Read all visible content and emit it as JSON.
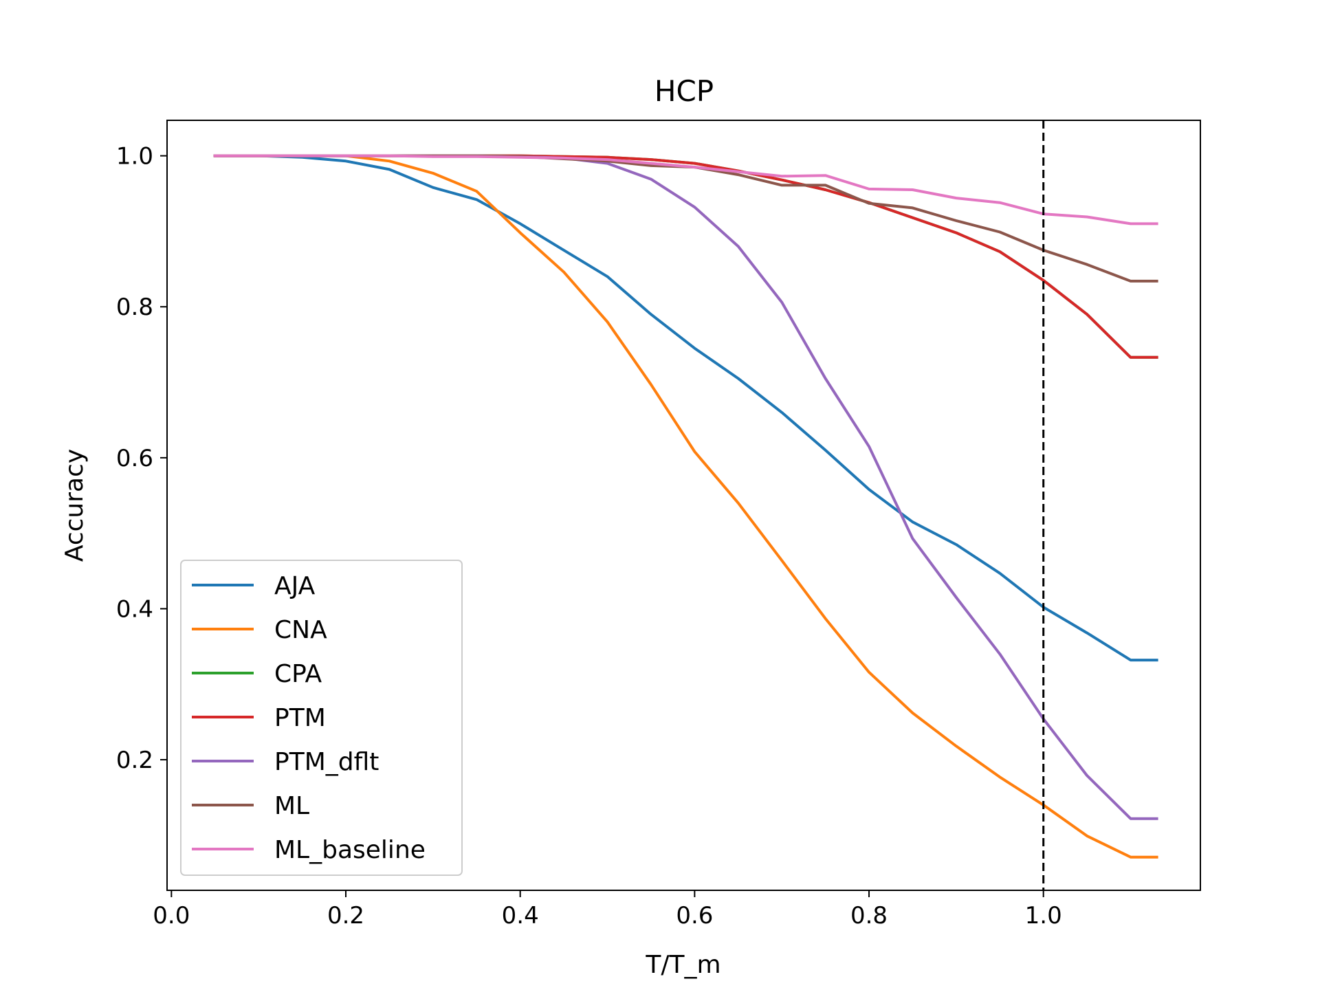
{
  "chart_data": {
    "type": "line",
    "title": "HCP",
    "xlabel": "T/T_m",
    "ylabel": "Accuracy",
    "xlim": [
      -0.005,
      1.18
    ],
    "ylim": [
      0.027,
      1.047
    ],
    "xticks": [
      0.0,
      0.2,
      0.4,
      0.6,
      0.8,
      1.0
    ],
    "xtick_labels": [
      "0.0",
      "0.2",
      "0.4",
      "0.6",
      "0.8",
      "1.0"
    ],
    "yticks": [
      0.2,
      0.4,
      0.6,
      0.8,
      1.0
    ],
    "ytick_labels": [
      "0.2",
      "0.4",
      "0.6",
      "0.8",
      "1.0"
    ],
    "vline": {
      "x": 1.0,
      "style": "dashed",
      "color": "#000000"
    },
    "grid": false,
    "legend_position": "lower-left",
    "x": [
      0.05,
      0.1,
      0.15,
      0.2,
      0.25,
      0.3,
      0.35,
      0.4,
      0.45,
      0.5,
      0.55,
      0.6,
      0.65,
      0.7,
      0.75,
      0.8,
      0.85,
      0.9,
      0.95,
      1.0,
      1.05,
      1.1,
      1.13
    ],
    "series": [
      {
        "name": "AJA",
        "color": "#1f77b4",
        "values": [
          1.0,
          1.0,
          0.998,
          0.993,
          0.982,
          0.958,
          0.942,
          0.91,
          0.875,
          0.84,
          0.79,
          0.745,
          0.705,
          0.66,
          0.61,
          0.558,
          0.515,
          0.485,
          0.447,
          0.402,
          0.368,
          0.332,
          0.332
        ]
      },
      {
        "name": "CNA",
        "color": "#ff7f0e",
        "values": [
          1.0,
          1.0,
          1.0,
          1.0,
          0.993,
          0.977,
          0.953,
          0.898,
          0.846,
          0.78,
          0.697,
          0.608,
          0.54,
          0.464,
          0.387,
          0.316,
          0.262,
          0.218,
          0.177,
          0.14,
          0.099,
          0.071,
          0.071
        ]
      },
      {
        "name": "CPA",
        "color": "#2ca02c",
        "values": [
          1.0,
          1.0,
          1.0,
          1.0,
          1.0,
          1.0,
          1.0,
          1.0,
          0.999,
          0.998,
          0.995,
          0.99,
          0.98,
          0.968,
          0.955,
          0.938,
          0.918,
          0.898,
          0.873,
          0.835,
          0.79,
          0.733,
          0.733
        ]
      },
      {
        "name": "PTM",
        "color": "#d62728",
        "values": [
          1.0,
          1.0,
          1.0,
          1.0,
          1.0,
          1.0,
          1.0,
          1.0,
          0.999,
          0.998,
          0.995,
          0.99,
          0.98,
          0.968,
          0.955,
          0.938,
          0.918,
          0.898,
          0.873,
          0.835,
          0.79,
          0.733,
          0.733
        ]
      },
      {
        "name": "PTM_dflt",
        "color": "#9467bd",
        "values": [
          1.0,
          1.0,
          1.0,
          1.0,
          1.0,
          1.0,
          1.0,
          0.999,
          0.997,
          0.99,
          0.969,
          0.932,
          0.88,
          0.806,
          0.705,
          0.615,
          0.493,
          0.415,
          0.34,
          0.254,
          0.179,
          0.122,
          0.122
        ]
      },
      {
        "name": "ML",
        "color": "#8c564b",
        "values": [
          1.0,
          1.0,
          1.0,
          1.0,
          1.0,
          1.0,
          1.0,
          0.999,
          0.996,
          0.993,
          0.987,
          0.985,
          0.975,
          0.961,
          0.961,
          0.937,
          0.931,
          0.914,
          0.899,
          0.875,
          0.856,
          0.834,
          0.834
        ]
      },
      {
        "name": "ML_baseline",
        "color": "#e377c2",
        "values": [
          1.0,
          1.0,
          1.0,
          1.0,
          1.0,
          0.999,
          0.999,
          0.998,
          0.997,
          0.995,
          0.99,
          0.985,
          0.979,
          0.973,
          0.974,
          0.956,
          0.955,
          0.944,
          0.938,
          0.923,
          0.919,
          0.91,
          0.91
        ]
      }
    ]
  }
}
